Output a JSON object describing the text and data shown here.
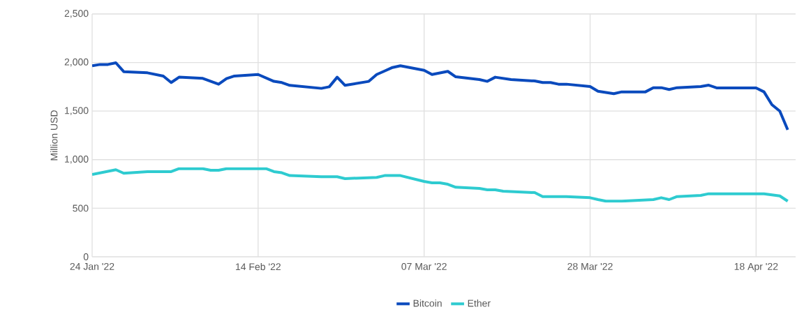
{
  "chart_data": {
    "type": "line",
    "ylabel": "Million USD",
    "series": [
      {
        "name": "Bitcoin",
        "color": "#0a4abd",
        "x": [
          "2022-01-24",
          "2022-01-25",
          "2022-01-26",
          "2022-01-27",
          "2022-01-28",
          "2022-01-31",
          "2022-02-02",
          "2022-02-03",
          "2022-02-04",
          "2022-02-07",
          "2022-02-09",
          "2022-02-10",
          "2022-02-11",
          "2022-02-14",
          "2022-02-16",
          "2022-02-17",
          "2022-02-18",
          "2022-02-22",
          "2022-02-23",
          "2022-02-24",
          "2022-02-25",
          "2022-02-28",
          "2022-03-01",
          "2022-03-02",
          "2022-03-03",
          "2022-03-04",
          "2022-03-07",
          "2022-03-08",
          "2022-03-10",
          "2022-03-11",
          "2022-03-14",
          "2022-03-15",
          "2022-03-16",
          "2022-03-18",
          "2022-03-21",
          "2022-03-22",
          "2022-03-23",
          "2022-03-24",
          "2022-03-25",
          "2022-03-28",
          "2022-03-29",
          "2022-03-31",
          "2022-04-01",
          "2022-04-04",
          "2022-04-05",
          "2022-04-06",
          "2022-04-07",
          "2022-04-08",
          "2022-04-11",
          "2022-04-12",
          "2022-04-13",
          "2022-04-18",
          "2022-04-19",
          "2022-04-20",
          "2022-04-21",
          "2022-04-22"
        ],
        "values": [
          1966,
          1980,
          1980,
          1997,
          1906,
          1894,
          1861,
          1794,
          1849,
          1837,
          1777,
          1834,
          1861,
          1877,
          1806,
          1794,
          1765,
          1734,
          1750,
          1849,
          1765,
          1806,
          1877,
          1913,
          1949,
          1966,
          1920,
          1877,
          1909,
          1853,
          1825,
          1806,
          1849,
          1825,
          1810,
          1794,
          1794,
          1777,
          1777,
          1753,
          1705,
          1679,
          1698,
          1698,
          1741,
          1741,
          1722,
          1741,
          1753,
          1767,
          1739,
          1739,
          1698,
          1566,
          1499,
          1307
        ]
      },
      {
        "name": "Ether",
        "color": "#2ecbd0",
        "x": [
          "2022-01-24",
          "2022-01-27",
          "2022-01-28",
          "2022-01-31",
          "2022-02-03",
          "2022-02-04",
          "2022-02-07",
          "2022-02-08",
          "2022-02-09",
          "2022-02-10",
          "2022-02-15",
          "2022-02-16",
          "2022-02-17",
          "2022-02-18",
          "2022-02-22",
          "2022-02-24",
          "2022-02-25",
          "2022-03-01",
          "2022-03-02",
          "2022-03-04",
          "2022-03-07",
          "2022-03-08",
          "2022-03-09",
          "2022-03-10",
          "2022-03-11",
          "2022-03-14",
          "2022-03-15",
          "2022-03-16",
          "2022-03-17",
          "2022-03-21",
          "2022-03-22",
          "2022-03-25",
          "2022-03-28",
          "2022-03-29",
          "2022-03-30",
          "2022-04-01",
          "2022-04-05",
          "2022-04-06",
          "2022-04-07",
          "2022-04-08",
          "2022-04-11",
          "2022-04-12",
          "2022-04-19",
          "2022-04-21",
          "2022-04-22"
        ],
        "values": [
          848,
          896,
          860,
          877,
          877,
          907,
          907,
          891,
          891,
          907,
          907,
          877,
          865,
          836,
          824,
          824,
          805,
          817,
          836,
          836,
          776,
          762,
          762,
          747,
          716,
          704,
          690,
          690,
          675,
          661,
          620,
          620,
          608,
          589,
          573,
          573,
          589,
          608,
          589,
          620,
          632,
          649,
          649,
          627,
          573
        ]
      }
    ],
    "xlim": [
      "2022-01-24",
      "2022-04-23"
    ],
    "xticks": [
      {
        "value": "2022-01-24",
        "label": "24 Jan '22"
      },
      {
        "value": "2022-02-14",
        "label": "14 Feb '22"
      },
      {
        "value": "2022-03-07",
        "label": "07 Mar '22"
      },
      {
        "value": "2022-03-28",
        "label": "28 Mar '22"
      },
      {
        "value": "2022-04-18",
        "label": "18 Apr '22"
      }
    ],
    "ylim": [
      0,
      2500
    ],
    "yticks": [
      0,
      500,
      {
        "value": 1000,
        "label": "1,000"
      },
      {
        "value": 1500,
        "label": "1,500"
      },
      {
        "value": 2000,
        "label": "2,000"
      },
      {
        "value": 2500,
        "label": "2,500"
      }
    ],
    "grid": true,
    "legend": "bottom",
    "line_style": "solid"
  }
}
